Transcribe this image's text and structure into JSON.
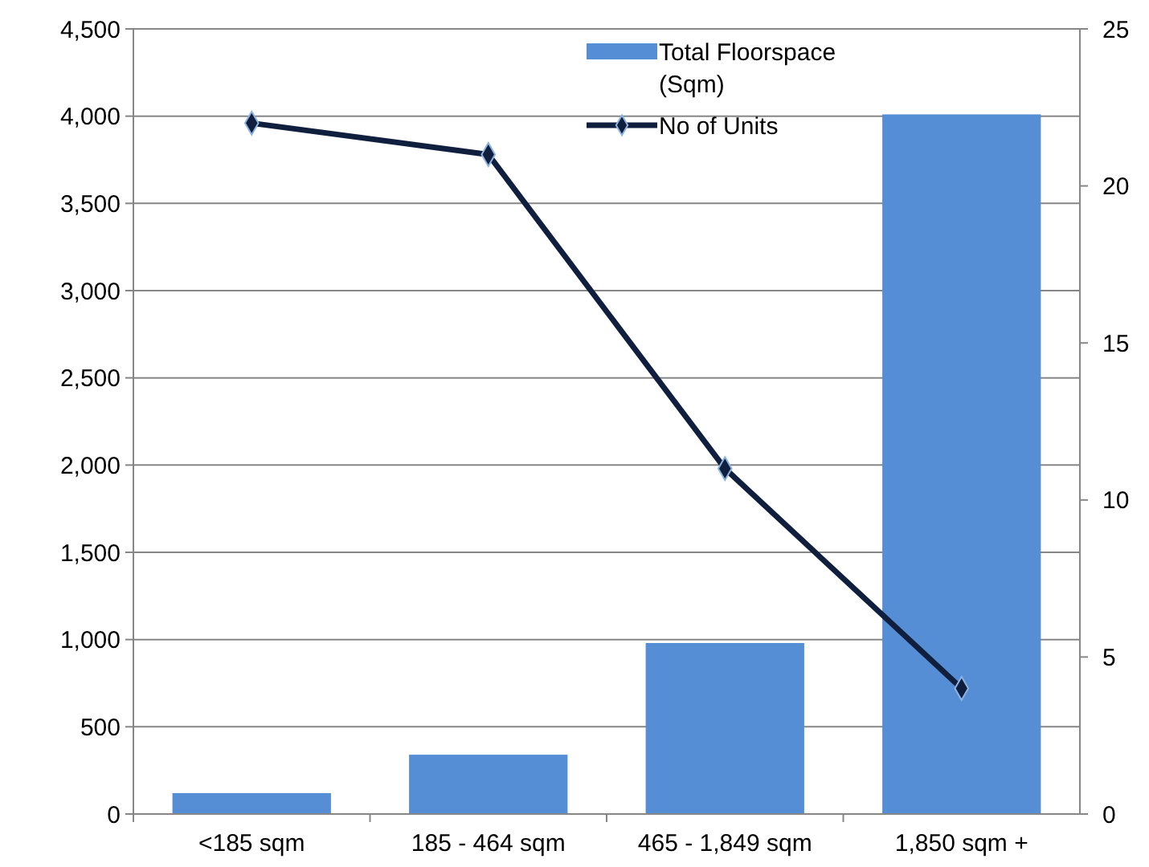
{
  "chart_data": {
    "type": "bar",
    "categories": [
      "<185 sqm",
      "185 - 464 sqm",
      "465 - 1,849 sqm",
      "1,850 sqm +"
    ],
    "series": [
      {
        "name": "Total Floorspace (Sqm)",
        "color": "#558ed5",
        "values": [
          120,
          340,
          980,
          4010
        ]
      },
      {
        "name": "No of Units",
        "type": "line",
        "axis": "y2",
        "color": "#0f1f3d",
        "values": [
          22,
          21,
          11,
          4
        ],
        "marker": "diamond"
      }
    ],
    "ylim": [
      0,
      4500
    ],
    "yticks": [
      {
        "value": 0,
        "label": "0"
      },
      {
        "value": 500,
        "label": "500"
      },
      {
        "value": 1000,
        "label": "1,000"
      },
      {
        "value": 1500,
        "label": "1,500"
      },
      {
        "value": 2000,
        "label": "2,000"
      },
      {
        "value": 2500,
        "label": "2,500"
      },
      {
        "value": 3000,
        "label": "3,000"
      },
      {
        "value": 3500,
        "label": "3,500"
      },
      {
        "value": 4000,
        "label": "4,000"
      },
      {
        "value": 4500,
        "label": "4,500"
      }
    ],
    "y2lim": [
      0,
      25
    ],
    "y2ticks": [
      0,
      5,
      10,
      15,
      20,
      25
    ],
    "grid": "y",
    "legend": "top right"
  }
}
